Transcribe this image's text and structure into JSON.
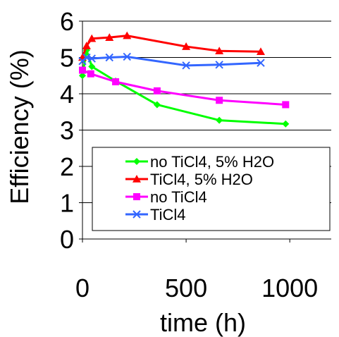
{
  "chart_data": {
    "type": "line",
    "xlabel": "time (h)",
    "ylabel": "Efficiency (%)",
    "xlim": [
      0,
      1200
    ],
    "ylim": [
      0,
      6
    ],
    "xticks": [
      0,
      500,
      1000
    ],
    "yticks": [
      0,
      1,
      2,
      3,
      4,
      5,
      6
    ],
    "grid": "horizontal",
    "legend_position": "lower-right",
    "series": [
      {
        "name": "no TiCl4, 5% H2O",
        "color": "#00ff00",
        "marker": "diamond",
        "x": [
          0,
          20,
          45,
          160,
          360,
          660,
          980
        ],
        "y": [
          4.5,
          5.2,
          4.75,
          4.35,
          3.7,
          3.27,
          3.17
        ]
      },
      {
        "name": "TiCl4, 5% H2O",
        "color": "#ff0000",
        "marker": "triangle",
        "x": [
          0,
          20,
          45,
          130,
          215,
          500,
          660,
          860
        ],
        "y": [
          5.0,
          5.32,
          5.52,
          5.55,
          5.6,
          5.3,
          5.18,
          5.16
        ]
      },
      {
        "name": "no TiCl4",
        "color": "#ff00ff",
        "marker": "square",
        "x": [
          0,
          40,
          160,
          360,
          660,
          980
        ],
        "y": [
          4.65,
          4.55,
          4.33,
          4.08,
          3.82,
          3.7
        ]
      },
      {
        "name": "TiCl4",
        "color": "#3366ff",
        "marker": "x",
        "x": [
          0,
          20,
          45,
          130,
          215,
          500,
          660,
          860
        ],
        "y": [
          4.9,
          5.0,
          4.97,
          5.0,
          5.02,
          4.78,
          4.8,
          4.85
        ]
      }
    ]
  }
}
